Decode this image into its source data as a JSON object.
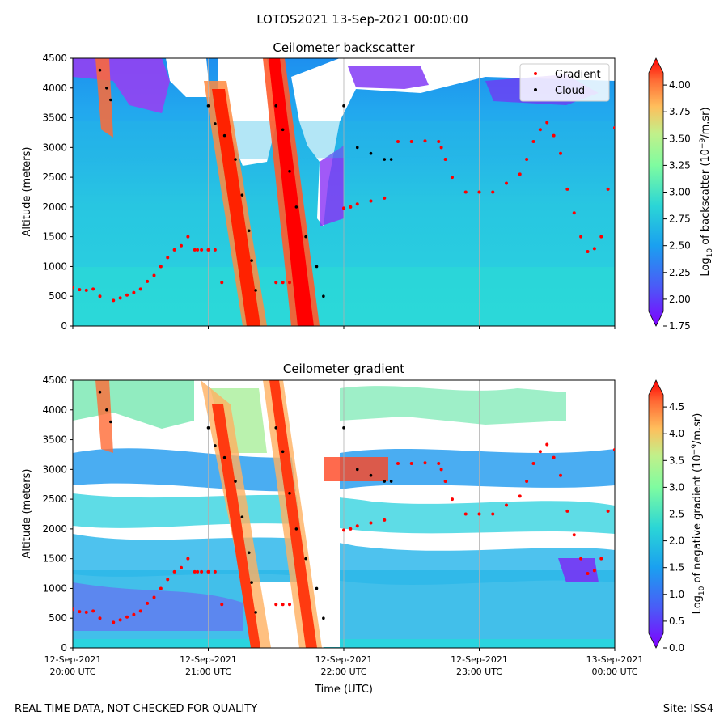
{
  "suptitle": "LOTOS2021 13-Sep-2021 00:00:00",
  "footer": {
    "left": "REAL TIME DATA, NOT CHECKED FOR QUALITY",
    "right": "Site: ISS4"
  },
  "chart_data": [
    {
      "type": "heatmap",
      "title": "Ceilometer backscatter",
      "ylabel": "Altitude (meters)",
      "xlabel": "",
      "colorbar_label": "Log10 of backscatter (10^-9/m.sr)",
      "colormap": "rainbow",
      "colorbar_range": [
        1.75,
        4.25
      ],
      "colorbar_ticks": [
        "1.75",
        "2.00",
        "2.25",
        "2.50",
        "2.75",
        "3.00",
        "3.25",
        "3.50",
        "3.75",
        "4.00"
      ],
      "ylim": [
        0,
        4500
      ],
      "yticks": [
        "0",
        "500",
        "1000",
        "1500",
        "2000",
        "2500",
        "3000",
        "3500",
        "4000",
        "4500"
      ],
      "xlim": [
        "2021-09-12 20:00",
        "2021-09-13 00:00"
      ],
      "grid": true,
      "legend_position": "top-right",
      "legend": [
        {
          "label": "Gradient",
          "color": "#ff0000"
        },
        {
          "label": "Cloud",
          "color": "#000000"
        }
      ]
    },
    {
      "type": "heatmap",
      "title": "Ceilometer gradient",
      "ylabel": "Altitude (meters)",
      "xlabel": "Time (UTC)",
      "colorbar_label": "Log10 of negative gradient (10^-9/m.sr)",
      "colormap": "rainbow",
      "colorbar_range": [
        0,
        5
      ],
      "colorbar_ticks": [
        "0.0",
        "0.5",
        "1.0",
        "1.5",
        "2.0",
        "2.5",
        "3.0",
        "3.5",
        "4.0",
        "4.5"
      ],
      "ylim": [
        0,
        4500
      ],
      "yticks": [
        "0",
        "500",
        "1000",
        "1500",
        "2000",
        "2500",
        "3000",
        "3500",
        "4000",
        "4500"
      ],
      "xticks": [
        {
          "date": "12-Sep-2021",
          "time": "20:00 UTC"
        },
        {
          "date": "12-Sep-2021",
          "time": "21:00 UTC"
        },
        {
          "date": "12-Sep-2021",
          "time": "22:00 UTC"
        },
        {
          "date": "12-Sep-2021",
          "time": "23:00 UTC"
        },
        {
          "date": "13-Sep-2021",
          "time": "00:00 UTC"
        }
      ],
      "grid": true
    }
  ],
  "gradient_points": {
    "series": "Gradient",
    "x_unit": "hours after 2021-09-12 20:00 UTC",
    "y_unit": "meters",
    "x": [
      0.0,
      0.05,
      0.1,
      0.15,
      0.2,
      0.3,
      0.35,
      0.4,
      0.45,
      0.5,
      0.55,
      0.6,
      0.65,
      0.7,
      0.75,
      0.8,
      0.85,
      0.9,
      0.92,
      0.95,
      1.0,
      1.05,
      1.1,
      1.5,
      1.55,
      1.6,
      2.0,
      2.05,
      2.1,
      2.2,
      2.3,
      2.4,
      2.5,
      2.6,
      2.7,
      2.72,
      2.75,
      2.8,
      2.9,
      3.0,
      3.1,
      3.2,
      3.3,
      3.35,
      3.4,
      3.45,
      3.5,
      3.55,
      3.6,
      3.65,
      3.7,
      3.75,
      3.8,
      3.85,
      3.9,
      3.95,
      4.0
    ],
    "y": [
      650,
      610,
      600,
      620,
      500,
      430,
      470,
      520,
      560,
      620,
      750,
      850,
      1000,
      1150,
      1280,
      1350,
      1500,
      1280,
      1280,
      1280,
      1280,
      1280,
      730,
      730,
      730,
      730,
      1980,
      2000,
      2050,
      2100,
      2150,
      3100,
      3100,
      3110,
      3100,
      3000,
      2800,
      2500,
      2250,
      2250,
      2250,
      2400,
      2550,
      2800,
      3100,
      3300,
      3420,
      3200,
      2900,
      2300,
      1900,
      1500,
      1250,
      1300,
      1500,
      2300,
      3330
    ]
  },
  "cloud_points": {
    "series": "Cloud",
    "x_unit": "hours after 2021-09-12 20:00 UTC",
    "y_unit": "meters",
    "x": [
      0.2,
      0.25,
      0.28,
      1.0,
      1.05,
      1.12,
      1.2,
      1.25,
      1.3,
      1.32,
      1.35,
      1.5,
      1.55,
      1.6,
      1.65,
      1.72,
      1.8,
      1.85,
      2.0,
      2.1,
      2.2,
      2.3,
      2.35
    ],
    "y": [
      4300,
      4000,
      3800,
      3700,
      3400,
      3200,
      2800,
      2200,
      1600,
      1100,
      600,
      3700,
      3300,
      2600,
      2000,
      1500,
      1000,
      500,
      3700,
      3000,
      2900,
      2800,
      2800
    ]
  }
}
